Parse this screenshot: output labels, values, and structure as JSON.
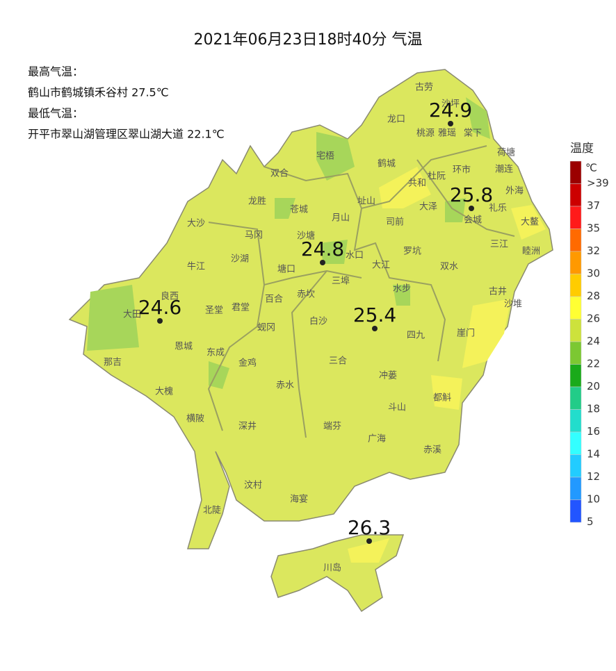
{
  "header": {
    "title": "2021年06月23日18时40分 气温"
  },
  "stats": [
    "最高气温：",
    "鹤山市鹤城镇禾谷村 27.5℃",
    "最低气温：",
    "开平市翠山湖管理区翠山湖大道 22.1℃"
  ],
  "stations": [
    24.9,
    25.8,
    24.8,
    24.6,
    25.4,
    26.3
  ],
  "towns": [
    "古劳",
    "沙坪",
    "龙口",
    "桃源",
    "雅瑶",
    "棠下",
    "荷塘",
    "宅梧",
    "双合",
    "鹤城",
    "杜阮",
    "环市",
    "潮连",
    "共和",
    "外海",
    "龙胜",
    "苍城",
    "址山",
    "大泽",
    "会城",
    "礼乐",
    "大鳌",
    "大沙",
    "马冈",
    "沙塘",
    "月山",
    "司前",
    "三江",
    "睦洲",
    "沙湖",
    "水口",
    "罗坑",
    "双水",
    "牛江",
    "塘口",
    "大江",
    "三埠",
    "古井",
    "良西",
    "赤坎",
    "水步",
    "沙堆",
    "大田",
    "圣堂",
    "君堂",
    "百合",
    "白沙",
    "四九",
    "崖门",
    "蚬冈",
    "恩城",
    "那吉",
    "东成",
    "金鸡",
    "三合",
    "赤水",
    "冲蒌",
    "都斛",
    "大槐",
    "横陂",
    "深井",
    "斗山",
    "端芬",
    "广海",
    "赤溪",
    "汶村",
    "海宴",
    "北陡",
    "川岛"
  ],
  "legend": {
    "title": "温度",
    "unit": "℃",
    "items": [
      {
        "label": ">39",
        "color": "#9b0000"
      },
      {
        "label": "37",
        "color": "#cc0000"
      },
      {
        "label": "35",
        "color": "#ff1a1a"
      },
      {
        "label": "32",
        "color": "#ff6a00"
      },
      {
        "label": "30",
        "color": "#ff9900"
      },
      {
        "label": "28",
        "color": "#ffcc00"
      },
      {
        "label": "26",
        "color": "#ffff33"
      },
      {
        "label": "24",
        "color": "#cde23c"
      },
      {
        "label": "22",
        "color": "#7cc832"
      },
      {
        "label": "20",
        "color": "#1aaa1a"
      },
      {
        "label": "18",
        "color": "#22cc88"
      },
      {
        "label": "16",
        "color": "#22ddcc"
      },
      {
        "label": "14",
        "color": "#33ffff"
      },
      {
        "label": "12",
        "color": "#22ccff"
      },
      {
        "label": "10",
        "color": "#2299ff"
      },
      {
        "label": "5",
        "color": "#2255ff"
      }
    ]
  }
}
